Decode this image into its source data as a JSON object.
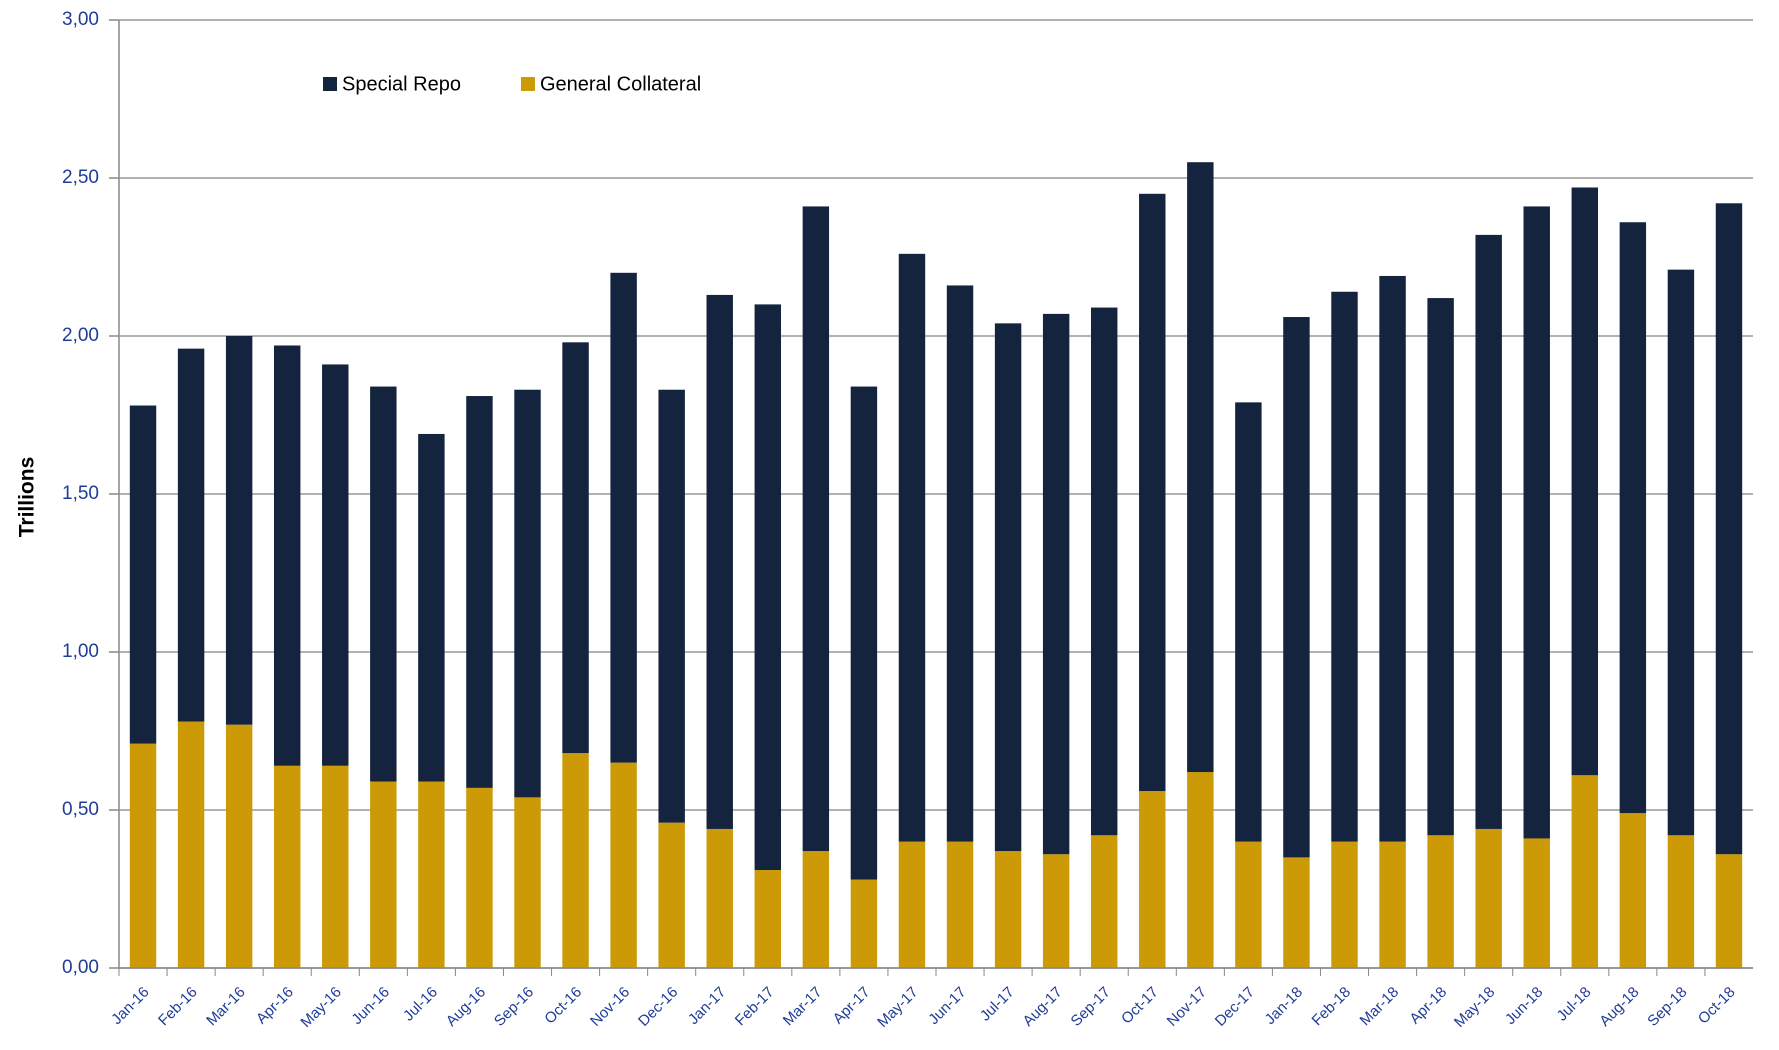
{
  "chart_data": {
    "type": "bar",
    "stacked": true,
    "y_label": "Trillions",
    "categories": [
      "Jan-16",
      "Feb-16",
      "Mar-16",
      "Apr-16",
      "May-16",
      "Jun-16",
      "Jul-16",
      "Aug-16",
      "Sep-16",
      "Oct-16",
      "Nov-16",
      "Dec-16",
      "Jan-17",
      "Feb-17",
      "Mar-17",
      "Apr-17",
      "May-17",
      "Jun-17",
      "Jul-17",
      "Aug-17",
      "Sep-17",
      "Oct-17",
      "Nov-17",
      "Dec-17",
      "Jan-18",
      "Feb-18",
      "Mar-18",
      "Apr-18",
      "May-18",
      "Jun-18",
      "Jul-18",
      "Aug-18",
      "Sep-18",
      "Oct-18"
    ],
    "series": [
      {
        "name": "Special Repo",
        "color": "#14243f",
        "values": [
          1.07,
          1.18,
          1.23,
          1.33,
          1.27,
          1.25,
          1.1,
          1.24,
          1.29,
          1.3,
          1.55,
          1.37,
          1.69,
          1.79,
          2.04,
          1.56,
          1.86,
          1.76,
          1.67,
          1.71,
          1.67,
          1.89,
          1.93,
          1.39,
          1.71,
          1.74,
          1.79,
          1.7,
          1.88,
          2.0,
          1.86,
          1.87,
          1.79,
          2.06
        ]
      },
      {
        "name": "General Collateral",
        "color": "#cc9a06",
        "values": [
          0.71,
          0.78,
          0.77,
          0.64,
          0.64,
          0.59,
          0.59,
          0.57,
          0.54,
          0.68,
          0.65,
          0.46,
          0.44,
          0.31,
          0.37,
          0.28,
          0.4,
          0.4,
          0.37,
          0.36,
          0.42,
          0.56,
          0.62,
          0.4,
          0.35,
          0.4,
          0.4,
          0.42,
          0.44,
          0.41,
          0.61,
          0.49,
          0.42,
          0.36
        ]
      }
    ],
    "stack_order": [
      "General Collateral",
      "Special Repo"
    ],
    "ylim": [
      0,
      3
    ],
    "yticks": [
      {
        "value": 0,
        "label": "0,00"
      },
      {
        "value": 0.5,
        "label": "0,50"
      },
      {
        "value": 1,
        "label": "1,00"
      },
      {
        "value": 1.5,
        "label": "1,50"
      },
      {
        "value": 2,
        "label": "2,00"
      },
      {
        "value": 2.5,
        "label": "2,50"
      },
      {
        "value": 3,
        "label": "3,00"
      }
    ],
    "grid": true,
    "legend": "top"
  }
}
